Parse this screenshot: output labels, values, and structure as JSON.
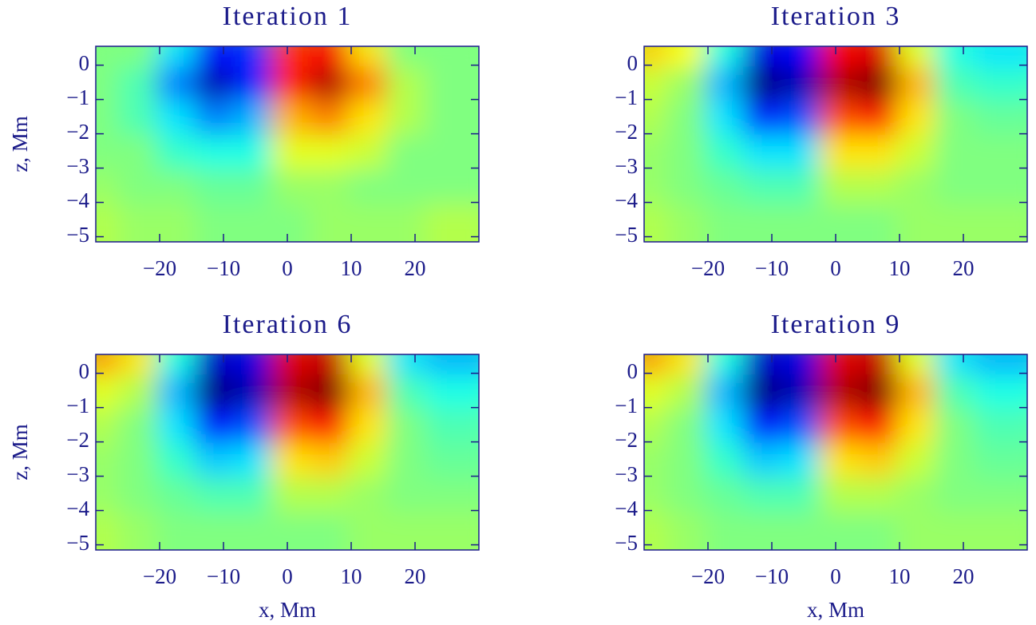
{
  "chart_data": [
    {
      "type": "heatmap",
      "title": "Iteration 1",
      "ylabel": "z, Mm",
      "colormap": "jet",
      "x": [
        -27,
        -21,
        -15,
        -9,
        -3,
        3,
        9,
        15,
        21,
        27
      ],
      "y": [
        0,
        -1,
        -2,
        -3,
        -4,
        -5
      ],
      "values": [
        [
          0,
          0,
          -0.3,
          -0.75,
          -0.65,
          0.65,
          0.75,
          0.3,
          0,
          0
        ],
        [
          0,
          -0.1,
          -0.5,
          -0.9,
          -0.7,
          0.7,
          0.9,
          0.5,
          0.1,
          0
        ],
        [
          0,
          -0.1,
          -0.3,
          -0.5,
          -0.4,
          0.4,
          0.5,
          0.3,
          0.1,
          0
        ],
        [
          0,
          0,
          -0.15,
          -0.2,
          -0.2,
          0.2,
          0.2,
          0.15,
          0,
          0
        ],
        [
          0.05,
          0,
          0,
          -0.05,
          -0.05,
          0.05,
          0.05,
          0,
          0,
          0
        ],
        [
          0.1,
          0.05,
          0.05,
          0,
          0,
          0,
          0.05,
          0.05,
          0.05,
          0.1
        ]
      ],
      "xlim": [
        -30,
        30
      ],
      "ylim": [
        -5.15,
        0.55
      ],
      "xticks": [
        {
          "value": -20,
          "label": "−20"
        },
        {
          "value": -10,
          "label": "−10"
        },
        0,
        10,
        20
      ],
      "yticks": [
        0,
        {
          "value": -1,
          "label": "−1"
        },
        {
          "value": -2,
          "label": "−2"
        },
        {
          "value": -3,
          "label": "−3"
        },
        {
          "value": -4,
          "label": "−4"
        },
        {
          "value": -5,
          "label": "−5"
        }
      ]
    },
    {
      "type": "heatmap",
      "title": "Iteration 3",
      "colormap": "jet",
      "x": [
        -27,
        -21,
        -15,
        -9,
        -3,
        3,
        9,
        15,
        21,
        27
      ],
      "y": [
        0,
        -1,
        -2,
        -3,
        -4,
        -5
      ],
      "values": [
        [
          0.35,
          0.25,
          -0.2,
          -0.8,
          -0.75,
          0.75,
          0.8,
          0.2,
          -0.2,
          -0.3
        ],
        [
          0.15,
          0.05,
          -0.4,
          -1,
          -0.9,
          0.9,
          1,
          0.4,
          -0.1,
          -0.15
        ],
        [
          0.1,
          0,
          -0.3,
          -0.7,
          -0.6,
          0.6,
          0.7,
          0.3,
          0,
          -0.05
        ],
        [
          0.05,
          0,
          -0.15,
          -0.3,
          -0.3,
          0.3,
          0.3,
          0.15,
          0,
          0
        ],
        [
          0.05,
          0,
          -0.05,
          -0.1,
          -0.1,
          0.1,
          0.1,
          0.05,
          0,
          0
        ],
        [
          0.1,
          0.05,
          0,
          0,
          0,
          0,
          0,
          0.05,
          0.05,
          0.05
        ]
      ],
      "xlim": [
        -30,
        30
      ],
      "ylim": [
        -5.15,
        0.55
      ],
      "xticks": [
        {
          "value": -20,
          "label": "−20"
        },
        {
          "value": -10,
          "label": "−10"
        },
        0,
        10,
        20
      ],
      "yticks": [
        0,
        {
          "value": -1,
          "label": "−1"
        },
        {
          "value": -2,
          "label": "−2"
        },
        {
          "value": -3,
          "label": "−3"
        },
        {
          "value": -4,
          "label": "−4"
        },
        {
          "value": -5,
          "label": "−5"
        }
      ]
    },
    {
      "type": "heatmap",
      "title": "Iteration 6",
      "ylabel": "z, Mm",
      "xlabel": "x, Mm",
      "colormap": "jet",
      "x": [
        -27,
        -21,
        -15,
        -9,
        -3,
        3,
        9,
        15,
        21,
        27
      ],
      "y": [
        0,
        -1,
        -2,
        -3,
        -4,
        -5
      ],
      "values": [
        [
          0.45,
          0.3,
          -0.2,
          -0.85,
          -0.8,
          0.8,
          0.85,
          0.2,
          -0.3,
          -0.4
        ],
        [
          0.2,
          0.1,
          -0.4,
          -1,
          -0.9,
          0.9,
          1,
          0.4,
          -0.1,
          -0.2
        ],
        [
          0.1,
          0,
          -0.3,
          -0.75,
          -0.6,
          0.6,
          0.75,
          0.3,
          0,
          -0.1
        ],
        [
          0.05,
          0,
          -0.15,
          -0.35,
          -0.3,
          0.3,
          0.35,
          0.15,
          0,
          -0.05
        ],
        [
          0.05,
          0,
          -0.05,
          -0.1,
          -0.1,
          0.1,
          0.1,
          0.05,
          0,
          0
        ],
        [
          0.1,
          0.05,
          0,
          0,
          0,
          0,
          0,
          0.05,
          0.05,
          0.05
        ]
      ],
      "xlim": [
        -30,
        30
      ],
      "ylim": [
        -5.15,
        0.55
      ],
      "xticks": [
        {
          "value": -20,
          "label": "−20"
        },
        {
          "value": -10,
          "label": "−10"
        },
        0,
        10,
        20
      ],
      "yticks": [
        0,
        {
          "value": -1,
          "label": "−1"
        },
        {
          "value": -2,
          "label": "−2"
        },
        {
          "value": -3,
          "label": "−3"
        },
        {
          "value": -4,
          "label": "−4"
        },
        {
          "value": -5,
          "label": "−5"
        }
      ]
    },
    {
      "type": "heatmap",
      "title": "Iteration 9",
      "xlabel": "x, Mm",
      "colormap": "jet",
      "x": [
        -27,
        -21,
        -15,
        -9,
        -3,
        3,
        9,
        15,
        21,
        27
      ],
      "y": [
        0,
        -1,
        -2,
        -3,
        -4,
        -5
      ],
      "values": [
        [
          0.45,
          0.3,
          -0.2,
          -0.85,
          -0.8,
          0.8,
          0.85,
          0.2,
          -0.3,
          -0.4
        ],
        [
          0.2,
          0.1,
          -0.4,
          -1,
          -0.9,
          0.9,
          1,
          0.4,
          -0.1,
          -0.2
        ],
        [
          0.1,
          0,
          -0.3,
          -0.75,
          -0.6,
          0.6,
          0.75,
          0.3,
          0,
          -0.1
        ],
        [
          0.05,
          0,
          -0.15,
          -0.35,
          -0.3,
          0.3,
          0.35,
          0.15,
          0,
          -0.05
        ],
        [
          0.05,
          0,
          -0.05,
          -0.1,
          -0.1,
          0.1,
          0.1,
          0.05,
          0,
          0
        ],
        [
          0.1,
          0.05,
          0,
          0,
          0,
          0,
          0,
          0.05,
          0.05,
          0.05
        ]
      ],
      "xlim": [
        -30,
        30
      ],
      "ylim": [
        -5.15,
        0.55
      ],
      "xticks": [
        {
          "value": -20,
          "label": "−20"
        },
        {
          "value": -10,
          "label": "−10"
        },
        0,
        10,
        20
      ],
      "yticks": [
        0,
        {
          "value": -1,
          "label": "−1"
        },
        {
          "value": -2,
          "label": "−2"
        },
        {
          "value": -3,
          "label": "−3"
        },
        {
          "value": -4,
          "label": "−4"
        },
        {
          "value": -5,
          "label": "−5"
        }
      ]
    }
  ]
}
